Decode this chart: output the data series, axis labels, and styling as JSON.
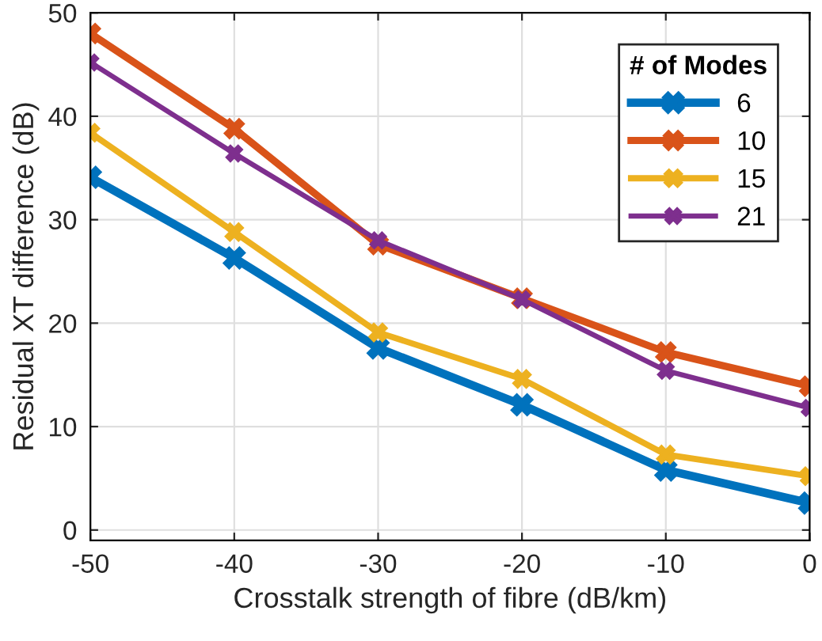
{
  "chart_data": {
    "type": "line",
    "xlabel": "Crosstalk strength of fibre (dB/km)",
    "ylabel": "Residual XT difference (dB)",
    "legend_title": "# of Modes",
    "x": [
      -50,
      -40,
      -30,
      -20,
      -10,
      0
    ],
    "series": [
      {
        "name": "6",
        "color": "#0072bd",
        "values": [
          34.1,
          26.3,
          17.6,
          12.1,
          5.8,
          2.6
        ]
      },
      {
        "name": "10",
        "color": "#d95319",
        "values": [
          48.0,
          38.8,
          27.6,
          22.4,
          17.2,
          13.9
        ]
      },
      {
        "name": "15",
        "color": "#edb120",
        "values": [
          38.4,
          28.8,
          19.1,
          14.6,
          7.3,
          5.2
        ]
      },
      {
        "name": "21",
        "color": "#7e2f8e",
        "values": [
          45.2,
          36.4,
          28.0,
          22.3,
          15.4,
          11.8
        ]
      }
    ],
    "xlim": [
      -50,
      0
    ],
    "ylim": [
      -1,
      50
    ],
    "xticks": [
      -50,
      -40,
      -30,
      -20,
      -10,
      0
    ],
    "yticks": [
      0,
      10,
      20,
      30,
      40,
      50
    ],
    "grid": true,
    "legend": "top right",
    "marker": "cross",
    "line_style": "solid"
  }
}
